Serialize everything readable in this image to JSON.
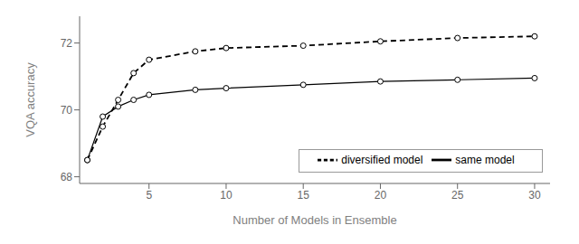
{
  "chart_data": {
    "type": "line",
    "xlabel": "Number of Models in Ensemble",
    "ylabel": "VQA accuracy",
    "x": [
      1,
      2,
      3,
      4,
      5,
      8,
      10,
      15,
      20,
      25,
      30
    ],
    "series": [
      {
        "name": "same model",
        "color": "#000000",
        "line_style": "solid",
        "marker": "circle",
        "values": [
          68.5,
          69.8,
          70.1,
          70.3,
          70.45,
          70.6,
          70.65,
          70.75,
          70.85,
          70.9,
          70.95
        ]
      },
      {
        "name": "diversified model",
        "color": "#000000",
        "line_style": "dashed",
        "marker": "circle",
        "values": [
          68.5,
          69.5,
          70.3,
          71.1,
          71.5,
          71.75,
          71.85,
          71.92,
          72.05,
          72.15,
          72.2
        ]
      }
    ],
    "xlim": [
      0.5,
      31
    ],
    "ylim": [
      67.8,
      72.8
    ],
    "xticks": [
      5,
      10,
      15,
      20,
      25,
      30
    ],
    "yticks": [
      68,
      70,
      72
    ],
    "legend": "lower right"
  }
}
